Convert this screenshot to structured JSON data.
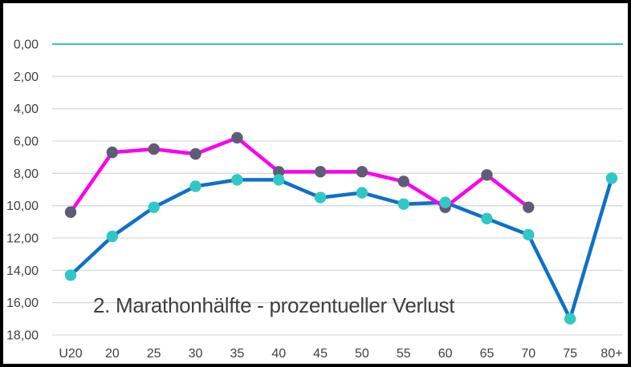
{
  "window": {
    "background_color": "#ffffff",
    "frame_border_color": "#000000"
  },
  "chart_data": {
    "type": "line",
    "title": "2. Marathonhälfte - prozentueller Verlust",
    "xlabel": "",
    "ylabel": "",
    "legend": "none",
    "grid": "horizontal",
    "text_color": "#404040",
    "title_color": "#3f3f3f",
    "categories": [
      "U20",
      "20",
      "25",
      "30",
      "35",
      "40",
      "45",
      "50",
      "55",
      "60",
      "65",
      "70",
      "75",
      "80+"
    ],
    "y_axis": {
      "min": 0,
      "max": 18,
      "step": 2,
      "reversed": true,
      "tick_labels": [
        "0,00",
        "2,00",
        "4,00",
        "6,00",
        "8,00",
        "10,00",
        "12,00",
        "14,00",
        "16,00",
        "18,00"
      ],
      "zero_line_color": "#3bbfc8",
      "gridline_color": "#d9d9d9"
    },
    "series": [
      {
        "name": "blue-series",
        "line_color": "#0f70c8",
        "marker_color": "#2fc8c6",
        "values": [
          14.3,
          11.9,
          10.1,
          8.8,
          8.4,
          8.4,
          9.5,
          9.2,
          9.9,
          9.8,
          10.8,
          11.8,
          17.0,
          8.3
        ]
      },
      {
        "name": "magenta-series",
        "line_color": "#fb00f0",
        "marker_color": "#5f5c77",
        "values": [
          10.4,
          6.7,
          6.5,
          6.8,
          5.8,
          7.9,
          7.9,
          7.9,
          8.5,
          10.1,
          8.1,
          10.1,
          null,
          null
        ]
      }
    ]
  }
}
